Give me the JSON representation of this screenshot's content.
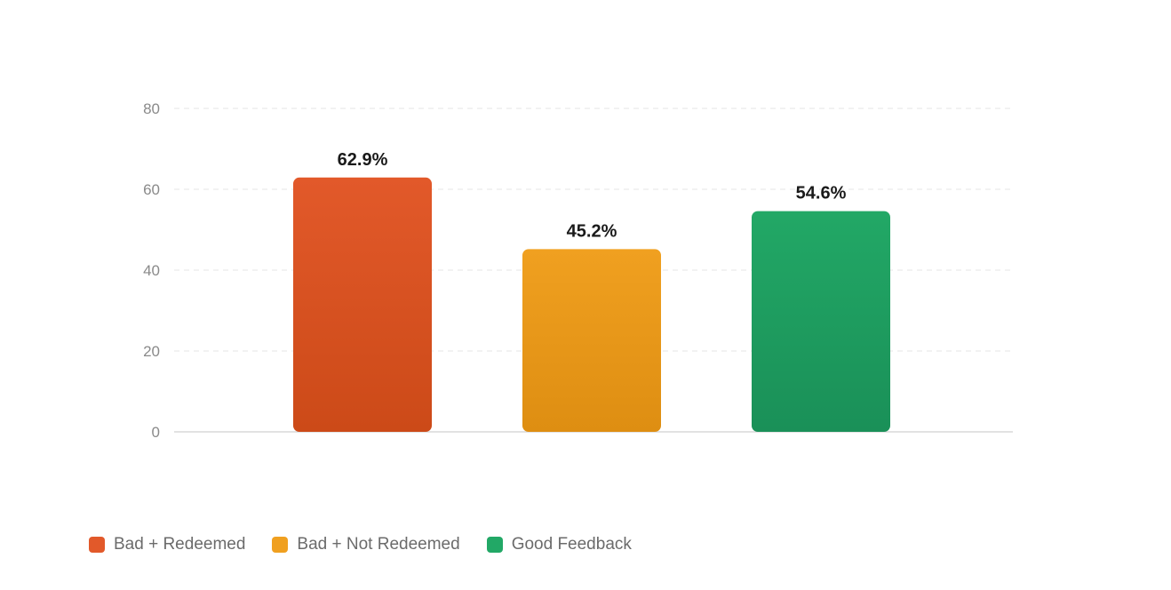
{
  "chart_data": {
    "type": "bar",
    "title": "",
    "xlabel": "",
    "ylabel": "",
    "ylim": [
      0,
      80
    ],
    "yticks": [
      0,
      20,
      40,
      60,
      80
    ],
    "grid": true,
    "legend_position": "bottom-left",
    "categories": [
      "Bad + Redeemed",
      "Bad + Not Redeemed",
      "Good Feedback"
    ],
    "values": [
      62.9,
      45.2,
      54.6
    ],
    "value_labels": [
      "62.9%",
      "45.2%",
      "54.6%"
    ],
    "colors": [
      "#e2592a",
      "#f0a020",
      "#22a866"
    ],
    "colors_dark": [
      "#cc4a18",
      "#de8e12",
      "#1a9058"
    ],
    "legend": [
      {
        "label": "Bad + Redeemed",
        "color": "#e2592a"
      },
      {
        "label": "Bad + Not Redeemed",
        "color": "#f0a020"
      },
      {
        "label": "Good Feedback",
        "color": "#22a866"
      }
    ]
  }
}
